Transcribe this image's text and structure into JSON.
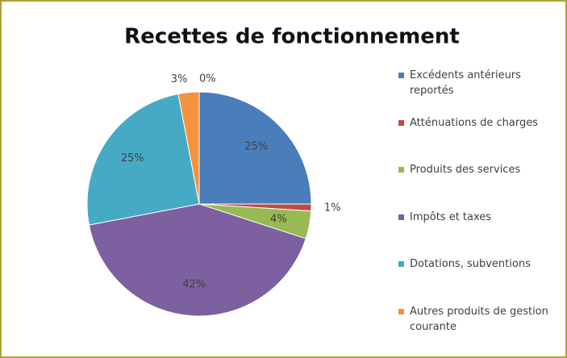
{
  "chart_data": {
    "type": "pie",
    "title": "Recettes de fonctionnement",
    "categories": [
      "Excédents antérieurs reportés",
      "Atténuations de charges",
      "Produits des services",
      "Impôts et taxes",
      "Dotations, subventions",
      "Autres produits de gestion courante",
      null
    ],
    "values": [
      25,
      1,
      4,
      42,
      25,
      3,
      0
    ],
    "value_labels": [
      "25%",
      "1%",
      "4%",
      "42%",
      "25%",
      "3%",
      "0%"
    ],
    "colors": [
      "#4a7ebb",
      "#be4b48",
      "#98b954",
      "#7d60a0",
      "#46aac5",
      "#f59240",
      "#2c4d75"
    ],
    "legend": "right"
  }
}
